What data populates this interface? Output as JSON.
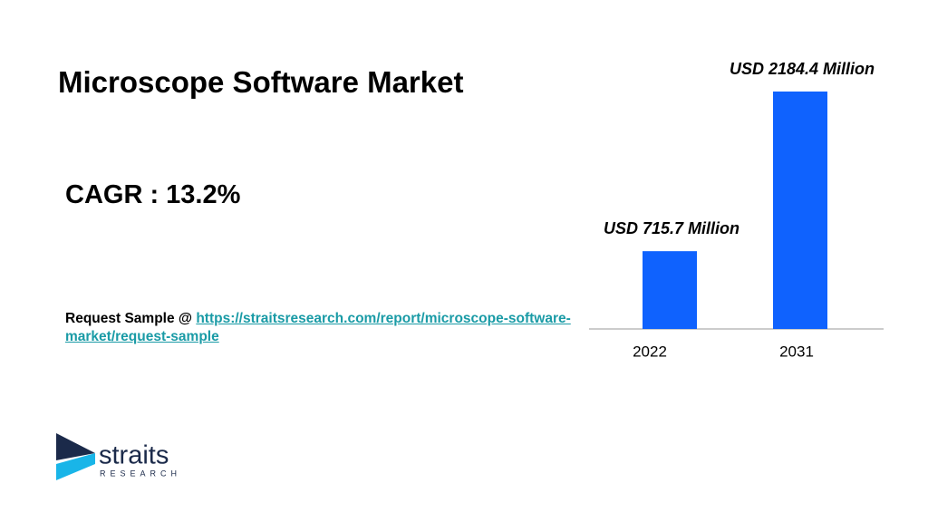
{
  "header": {
    "title": "Microscope Software Market"
  },
  "cagr": "CAGR : 13.2%",
  "request": {
    "label": "Request Sample @",
    "link": "https://straitsresearch.com/report/microscope-software-market/request-sample"
  },
  "logo": {
    "name": "straits",
    "tagline": "RESEARCH"
  },
  "chart_data": {
    "type": "bar",
    "categories": [
      "2022",
      "2031"
    ],
    "values": [
      715.7,
      2184.4
    ],
    "value_labels": [
      "USD 715.7 Million",
      "USD 2184.4 Million"
    ],
    "color": "#0f62fe"
  }
}
